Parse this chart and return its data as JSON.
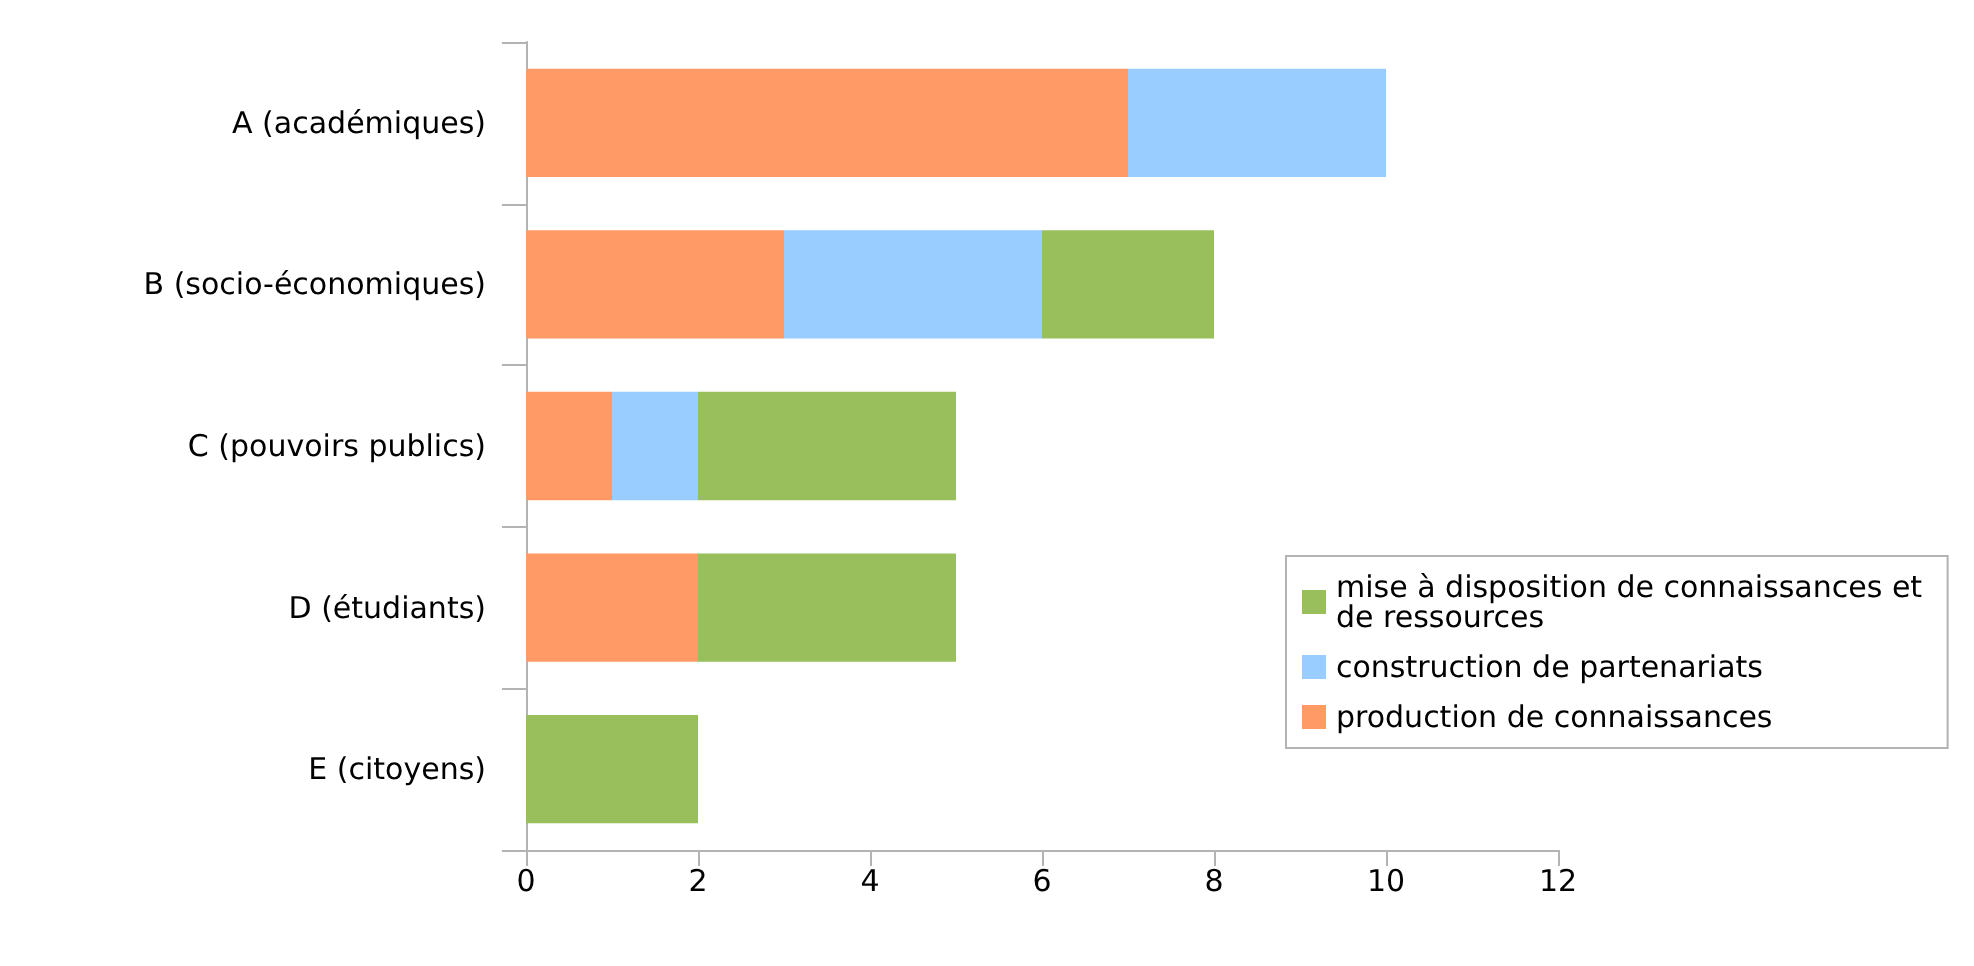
{
  "chart_data": {
    "type": "bar",
    "orientation": "horizontal",
    "stacked": true,
    "categories": [
      "A (académiques)",
      "B (socio-économiques)",
      "C (pouvoirs publics)",
      "D (étudiants)",
      "E (citoyens)"
    ],
    "series": [
      {
        "name": "production de connaissances",
        "color": "#ff9966",
        "values": [
          7,
          3,
          1,
          2,
          0
        ]
      },
      {
        "name": "construction de partenariats",
        "color": "#99ccff",
        "values": [
          3,
          3,
          1,
          0,
          0
        ]
      },
      {
        "name": "mise à disposition de connaissances et de ressources",
        "color": "#99bf5c",
        "values": [
          0,
          2,
          3,
          3,
          2
        ]
      }
    ],
    "xlim": [
      0,
      12
    ],
    "xticks": [
      0,
      2,
      4,
      6,
      8,
      10,
      12
    ],
    "grid": false,
    "legend": "right"
  }
}
